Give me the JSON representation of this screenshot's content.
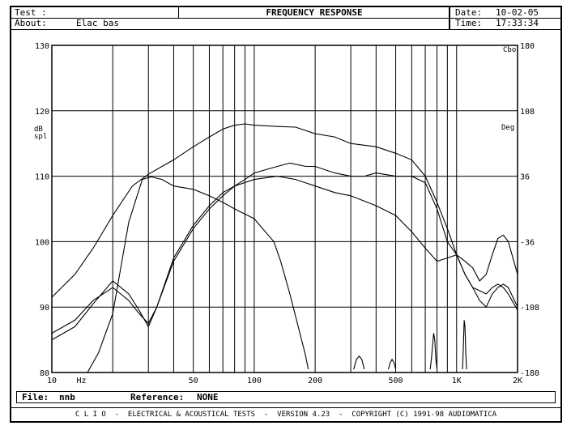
{
  "header": {
    "test_label": "Test :",
    "about_label": "About:",
    "about_value": "Elac bas",
    "title": "FREQUENCY RESPONSE",
    "date_label": "Date:",
    "date_value": "10-02-05",
    "time_label": "Time:",
    "time_value": "17:33:34"
  },
  "footer": {
    "file_label": "File:",
    "file_value": "nnb",
    "reference_label": "Reference:",
    "reference_value": "NONE",
    "banner": "C L I O  -  ELECTRICAL & ACOUSTICAL TESTS  -  VERSION 4.23  -  COPYRIGHT (C) 1991-98 AUDIOMATICA"
  },
  "chart_data": {
    "type": "line",
    "xscale": "log",
    "xlim": [
      10,
      2000
    ],
    "ylim": [
      80,
      130
    ],
    "y2lim": [
      -180,
      180
    ],
    "grid": true,
    "ylabel": "dB spl",
    "y2label": "Deg",
    "y2_top_label": "Cbo",
    "x_ticks": [
      {
        "value": 10,
        "label": "10"
      },
      {
        "value": 14,
        "label": "Hz"
      },
      {
        "value": 50,
        "label": "50"
      },
      {
        "value": 100,
        "label": "100"
      },
      {
        "value": 200,
        "label": "200"
      },
      {
        "value": 500,
        "label": "500"
      },
      {
        "value": 1000,
        "label": "1K"
      },
      {
        "value": 2000,
        "label": "2K"
      }
    ],
    "y_ticks": [
      "80",
      "90",
      "100",
      "110",
      "120",
      "130"
    ],
    "y2_ticks": [
      "-180",
      "-108",
      "-36",
      "36",
      "108",
      "180"
    ],
    "series": [
      {
        "values": [
          [
            10,
            91.5
          ],
          [
            13,
            95
          ],
          [
            16,
            99
          ],
          [
            20,
            104
          ],
          [
            25,
            108.5
          ],
          [
            30,
            110.3
          ],
          [
            35,
            111.5
          ],
          [
            40,
            112.5
          ],
          [
            50,
            114.5
          ],
          [
            60,
            116
          ],
          [
            70,
            117.2
          ],
          [
            80,
            117.8
          ],
          [
            90,
            118
          ],
          [
            100,
            117.8
          ],
          [
            130,
            117.6
          ],
          [
            160,
            117.5
          ],
          [
            200,
            116.5
          ],
          [
            250,
            116
          ],
          [
            300,
            115
          ],
          [
            400,
            114.5
          ],
          [
            500,
            113.5
          ],
          [
            600,
            112.5
          ],
          [
            700,
            110
          ],
          [
            800,
            106
          ],
          [
            900,
            102
          ],
          [
            1000,
            98
          ],
          [
            1100,
            95
          ],
          [
            1200,
            93
          ],
          [
            1300,
            91
          ],
          [
            1400,
            90
          ],
          [
            1500,
            92
          ],
          [
            1600,
            93
          ],
          [
            1700,
            93.5
          ],
          [
            1800,
            93
          ],
          [
            2000,
            90
          ]
        ]
      },
      {
        "values": [
          [
            10,
            86
          ],
          [
            13,
            88
          ],
          [
            16,
            91
          ],
          [
            20,
            93
          ],
          [
            24,
            91
          ],
          [
            27,
            89
          ],
          [
            30,
            87.5
          ],
          [
            33,
            90
          ],
          [
            40,
            97
          ],
          [
            50,
            102
          ],
          [
            60,
            105
          ],
          [
            70,
            107
          ],
          [
            80,
            108.5
          ],
          [
            90,
            109.5
          ],
          [
            100,
            110.5
          ],
          [
            130,
            111.5
          ],
          [
            150,
            112
          ],
          [
            180,
            111.5
          ],
          [
            200,
            111.5
          ],
          [
            250,
            110.5
          ],
          [
            300,
            110
          ],
          [
            350,
            110
          ],
          [
            400,
            110.5
          ],
          [
            500,
            110
          ],
          [
            600,
            110
          ],
          [
            700,
            109
          ],
          [
            800,
            105
          ],
          [
            900,
            100
          ],
          [
            1000,
            98
          ],
          [
            1100,
            95
          ],
          [
            1200,
            93
          ],
          [
            1300,
            92.5
          ],
          [
            1400,
            92
          ],
          [
            1500,
            93
          ],
          [
            1600,
            93.5
          ],
          [
            1700,
            93
          ],
          [
            1800,
            92
          ],
          [
            2000,
            89.5
          ]
        ]
      },
      {
        "values": [
          [
            10,
            85
          ],
          [
            13,
            87
          ],
          [
            16,
            90.5
          ],
          [
            20,
            94
          ],
          [
            24,
            92
          ],
          [
            27,
            89.5
          ],
          [
            30,
            87
          ],
          [
            33,
            90
          ],
          [
            40,
            97.5
          ],
          [
            50,
            102.5
          ],
          [
            60,
            105.5
          ],
          [
            70,
            107.5
          ],
          [
            80,
            108.5
          ],
          [
            100,
            109.5
          ],
          [
            130,
            110
          ],
          [
            160,
            109.5
          ],
          [
            200,
            108.5
          ],
          [
            250,
            107.5
          ],
          [
            300,
            107
          ],
          [
            400,
            105.5
          ],
          [
            500,
            104
          ],
          [
            600,
            101.5
          ],
          [
            700,
            99
          ],
          [
            800,
            97
          ],
          [
            900,
            97.5
          ],
          [
            1000,
            98
          ],
          [
            1100,
            97
          ],
          [
            1200,
            96
          ],
          [
            1300,
            94
          ],
          [
            1400,
            95
          ],
          [
            1500,
            98
          ],
          [
            1600,
            100.5
          ],
          [
            1700,
            101
          ],
          [
            1800,
            100
          ],
          [
            2000,
            95
          ]
        ]
      },
      {
        "values": [
          [
            15,
            80
          ],
          [
            17,
            83
          ],
          [
            20,
            89
          ],
          [
            24,
            103
          ],
          [
            28,
            109.5
          ],
          [
            31,
            109.9
          ],
          [
            35,
            109.5
          ],
          [
            40,
            108.5
          ],
          [
            50,
            108
          ],
          [
            60,
            107
          ],
          [
            70,
            106
          ],
          [
            80,
            105
          ],
          [
            100,
            103.5
          ],
          [
            110,
            102
          ],
          [
            125,
            100
          ],
          [
            135,
            97
          ],
          [
            150,
            92
          ],
          [
            165,
            87
          ],
          [
            178,
            83
          ],
          [
            185,
            80.5
          ]
        ]
      },
      {
        "values": [
          [
            310,
            80.5
          ],
          [
            320,
            82
          ],
          [
            330,
            82.5
          ],
          [
            340,
            82
          ],
          [
            350,
            80.5
          ]
        ]
      },
      {
        "values": [
          [
            460,
            80.5
          ],
          [
            470,
            81.5
          ],
          [
            480,
            82
          ],
          [
            490,
            81.5
          ],
          [
            500,
            80.5
          ]
        ]
      },
      {
        "values": [
          [
            740,
            80.5
          ],
          [
            750,
            82
          ],
          [
            760,
            84
          ],
          [
            770,
            86
          ],
          [
            780,
            85
          ],
          [
            790,
            82
          ],
          [
            800,
            80.5
          ]
        ]
      },
      {
        "values": [
          [
            1070,
            80.5
          ],
          [
            1080,
            84
          ],
          [
            1090,
            88
          ],
          [
            1100,
            87
          ],
          [
            1110,
            83
          ],
          [
            1120,
            80.5
          ]
        ]
      }
    ]
  }
}
